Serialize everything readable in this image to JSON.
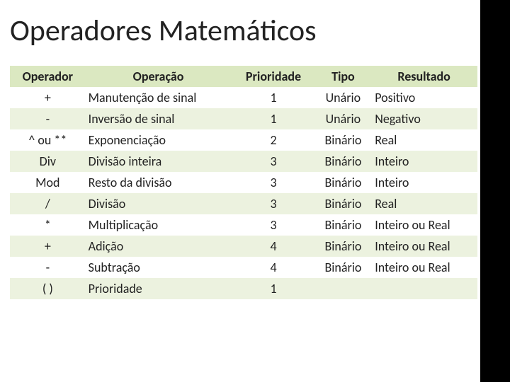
{
  "title": "Operadores Matemáticos",
  "colors": {
    "header_bg": "#dbe8c1",
    "row_even_bg": "#ecf2df",
    "row_odd_bg": "#ffffff",
    "sidebar_bg": "#000000",
    "text": "#222222"
  },
  "table": {
    "columns": [
      "Operador",
      "Operação",
      "Prioridade",
      "Tipo",
      "Resultado"
    ],
    "column_align": [
      "center",
      "left",
      "center",
      "center",
      "left"
    ],
    "rows": [
      [
        "+",
        "Manutenção de sinal",
        "1",
        "Unário",
        "Positivo"
      ],
      [
        "-",
        "Inversão de sinal",
        "1",
        "Unário",
        "Negativo"
      ],
      [
        "^ ou **",
        "Exponenciação",
        "2",
        "Binário",
        "Real"
      ],
      [
        "Div",
        "Divisão inteira",
        "3",
        "Binário",
        "Inteiro"
      ],
      [
        "Mod",
        "Resto da divisão",
        "3",
        "Binário",
        "Inteiro"
      ],
      [
        "/",
        "Divisão",
        "3",
        "Binário",
        "Real"
      ],
      [
        "*",
        "Multiplicação",
        "3",
        "Binário",
        "Inteiro ou Real"
      ],
      [
        "+",
        "Adição",
        "4",
        "Binário",
        "Inteiro ou Real"
      ],
      [
        "-",
        "Subtração",
        "4",
        "Binário",
        "Inteiro ou Real"
      ],
      [
        "(  )",
        "Prioridade",
        "1",
        "",
        ""
      ]
    ]
  }
}
